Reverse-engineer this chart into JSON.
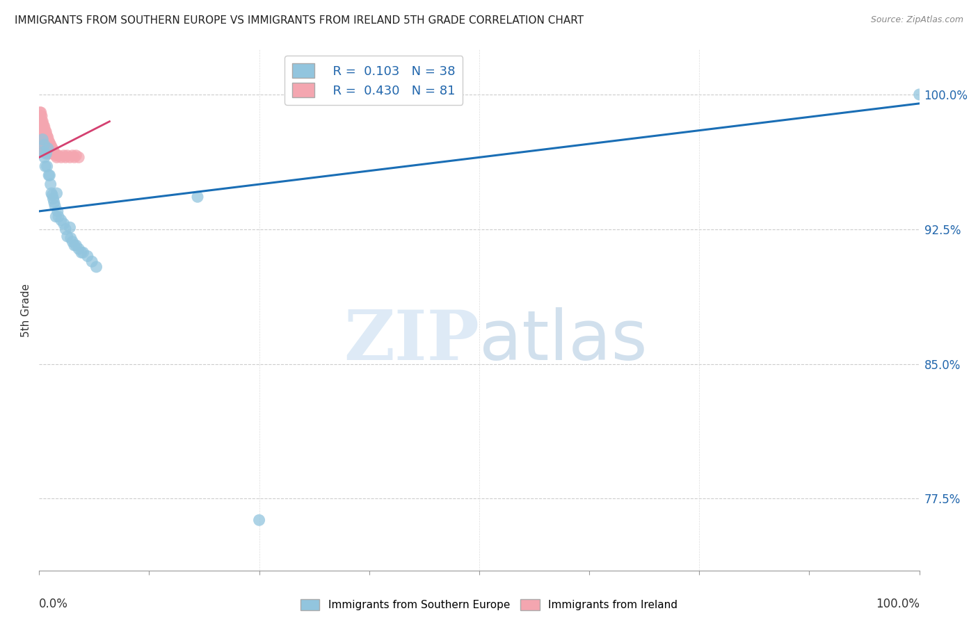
{
  "title": "IMMIGRANTS FROM SOUTHERN EUROPE VS IMMIGRANTS FROM IRELAND 5TH GRADE CORRELATION CHART",
  "source": "Source: ZipAtlas.com",
  "xlabel_bottom_left": "0.0%",
  "xlabel_bottom_right": "100.0%",
  "ylabel": "5th Grade",
  "yticks": [
    0.775,
    0.85,
    0.925,
    1.0
  ],
  "ytick_labels": [
    "77.5%",
    "85.0%",
    "92.5%",
    "100.0%"
  ],
  "xmin": 0.0,
  "xmax": 1.0,
  "ymin": 0.735,
  "ymax": 1.025,
  "blue_label": "Immigrants from Southern Europe",
  "pink_label": "Immigrants from Ireland",
  "blue_R": 0.103,
  "blue_N": 38,
  "pink_R": 0.43,
  "pink_N": 81,
  "blue_color": "#92c5de",
  "pink_color": "#f4a6b0",
  "trend_line_color": "#1a6eb5",
  "pink_trend_color": "#d44070",
  "blue_trend_x0": 0.0,
  "blue_trend_y0": 0.935,
  "blue_trend_x1": 1.0,
  "blue_trend_y1": 0.995,
  "pink_trend_x0": 0.0,
  "pink_trend_y0": 0.965,
  "pink_trend_x1": 0.08,
  "pink_trend_y1": 0.985,
  "blue_scatter_x": [
    0.004,
    0.005,
    0.006,
    0.006,
    0.007,
    0.008,
    0.009,
    0.01,
    0.011,
    0.012,
    0.013,
    0.014,
    0.015,
    0.016,
    0.017,
    0.018,
    0.019,
    0.02,
    0.021,
    0.022,
    0.025,
    0.028,
    0.03,
    0.032,
    0.035,
    0.036,
    0.038,
    0.04,
    0.042,
    0.045,
    0.048,
    0.05,
    0.055,
    0.06,
    0.065,
    0.18,
    0.25,
    1.0
  ],
  "blue_scatter_y": [
    0.975,
    0.968,
    0.965,
    0.972,
    0.96,
    0.967,
    0.96,
    0.97,
    0.955,
    0.955,
    0.95,
    0.945,
    0.944,
    0.942,
    0.94,
    0.938,
    0.932,
    0.945,
    0.935,
    0.932,
    0.93,
    0.928,
    0.925,
    0.921,
    0.926,
    0.92,
    0.918,
    0.916,
    0.916,
    0.914,
    0.912,
    0.912,
    0.91,
    0.907,
    0.904,
    0.943,
    0.763,
    1.0
  ],
  "pink_scatter_x": [
    0.001,
    0.001,
    0.001,
    0.001,
    0.001,
    0.001,
    0.001,
    0.001,
    0.001,
    0.002,
    0.002,
    0.002,
    0.002,
    0.002,
    0.002,
    0.002,
    0.002,
    0.003,
    0.003,
    0.003,
    0.003,
    0.003,
    0.003,
    0.003,
    0.004,
    0.004,
    0.004,
    0.004,
    0.004,
    0.004,
    0.005,
    0.005,
    0.005,
    0.005,
    0.005,
    0.005,
    0.006,
    0.006,
    0.006,
    0.006,
    0.006,
    0.007,
    0.007,
    0.007,
    0.007,
    0.008,
    0.008,
    0.008,
    0.008,
    0.009,
    0.009,
    0.009,
    0.01,
    0.01,
    0.01,
    0.01,
    0.011,
    0.011,
    0.012,
    0.012,
    0.013,
    0.013,
    0.014,
    0.014,
    0.015,
    0.015,
    0.016,
    0.017,
    0.018,
    0.019,
    0.02,
    0.022,
    0.025,
    0.028,
    0.03,
    0.032,
    0.035,
    0.038,
    0.04,
    0.042,
    0.045
  ],
  "pink_scatter_y": [
    0.99,
    0.988,
    0.985,
    0.983,
    0.98,
    0.978,
    0.975,
    0.973,
    0.97,
    0.99,
    0.988,
    0.985,
    0.983,
    0.98,
    0.977,
    0.975,
    0.972,
    0.988,
    0.985,
    0.982,
    0.979,
    0.976,
    0.973,
    0.97,
    0.985,
    0.982,
    0.979,
    0.976,
    0.973,
    0.97,
    0.983,
    0.98,
    0.977,
    0.974,
    0.971,
    0.968,
    0.982,
    0.979,
    0.976,
    0.973,
    0.97,
    0.98,
    0.977,
    0.974,
    0.971,
    0.979,
    0.976,
    0.973,
    0.97,
    0.977,
    0.974,
    0.971,
    0.976,
    0.973,
    0.97,
    0.967,
    0.974,
    0.971,
    0.973,
    0.97,
    0.972,
    0.969,
    0.971,
    0.968,
    0.97,
    0.967,
    0.969,
    0.968,
    0.967,
    0.966,
    0.965,
    0.966,
    0.965,
    0.966,
    0.965,
    0.966,
    0.965,
    0.966,
    0.965,
    0.966,
    0.965
  ]
}
